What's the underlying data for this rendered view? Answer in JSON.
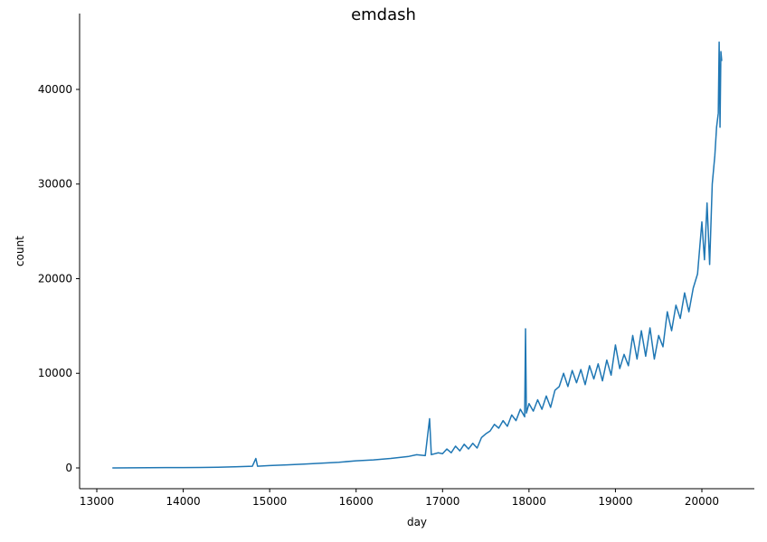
{
  "chart_data": {
    "type": "line",
    "title": "emdash",
    "x_label": "day",
    "y_label": "count",
    "x": [
      13180,
      13400,
      13600,
      13800,
      14000,
      14200,
      14400,
      14600,
      14800,
      14840,
      14860,
      15000,
      15200,
      15400,
      15600,
      15800,
      16000,
      16200,
      16400,
      16600,
      16700,
      16800,
      16850,
      16870,
      16950,
      17000,
      17050,
      17100,
      17150,
      17200,
      17250,
      17300,
      17350,
      17400,
      17450,
      17500,
      17550,
      17600,
      17650,
      17700,
      17750,
      17800,
      17850,
      17900,
      17950,
      17960,
      17970,
      18000,
      18050,
      18100,
      18150,
      18200,
      18250,
      18300,
      18350,
      18400,
      18450,
      18500,
      18550,
      18600,
      18650,
      18700,
      18750,
      18800,
      18850,
      18900,
      18950,
      19000,
      19050,
      19100,
      19150,
      19200,
      19250,
      19300,
      19350,
      19400,
      19450,
      19500,
      19550,
      19600,
      19650,
      19700,
      19750,
      19800,
      19850,
      19900,
      19950,
      20000,
      20030,
      20060,
      20090,
      20120,
      20150,
      20170,
      20190,
      20200,
      20210,
      20220,
      20230
    ],
    "series": [
      {
        "name": "count",
        "color": "#1f77b4",
        "values": [
          0,
          10,
          20,
          30,
          40,
          50,
          70,
          120,
          180,
          1000,
          180,
          250,
          320,
          400,
          500,
          600,
          750,
          850,
          1000,
          1200,
          1400,
          1300,
          5200,
          1400,
          1600,
          1500,
          2000,
          1600,
          2300,
          1800,
          2500,
          2000,
          2600,
          2100,
          3200,
          3600,
          3900,
          4600,
          4200,
          5000,
          4400,
          5600,
          5000,
          6200,
          5400,
          14700,
          5800,
          6800,
          6000,
          7200,
          6200,
          7600,
          6400,
          8200,
          8600,
          10000,
          8600,
          10300,
          9000,
          10400,
          8800,
          10800,
          9400,
          11000,
          9200,
          11400,
          9800,
          13000,
          10500,
          12000,
          10800,
          14000,
          11500,
          14500,
          11800,
          14800,
          11500,
          14000,
          12800,
          16500,
          14500,
          17200,
          15800,
          18500,
          16500,
          19000,
          20500,
          26000,
          22000,
          28000,
          21500,
          30000,
          33000,
          36000,
          37500,
          45000,
          36000,
          44000,
          43000
        ]
      }
    ],
    "xlim": [
      12801,
      20607
    ],
    "ylim": [
      -2196,
      48019
    ],
    "xticks": [
      13000,
      14000,
      15000,
      16000,
      17000,
      18000,
      19000,
      20000
    ],
    "yticks": [
      0,
      10000,
      20000,
      30000,
      40000
    ]
  }
}
